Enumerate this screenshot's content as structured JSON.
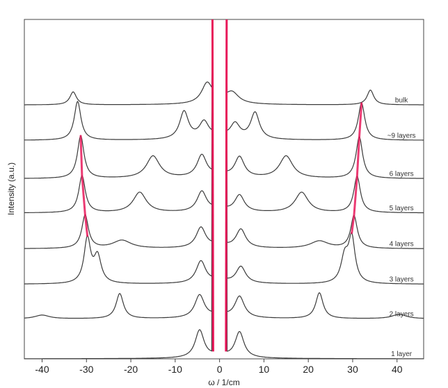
{
  "chart_data": {
    "type": "line",
    "title": "",
    "xlabel": "ω / 1/cm",
    "ylabel": "Intensity (a.u.)",
    "xlim": [
      -44,
      46
    ],
    "ylim": [
      0,
      9.2
    ],
    "xticks": [
      -40,
      -30,
      -20,
      -10,
      0,
      10,
      20,
      30,
      40
    ],
    "xtick_labels": [
      "-40",
      "-30",
      "-20",
      "-10",
      "0",
      "10",
      "20",
      "30",
      "40"
    ],
    "grid": false,
    "legend": "none",
    "colors": {
      "spectrum": "#3a3a3a",
      "highlight": "#e8195a",
      "fit": "#f29ab6"
    },
    "series": [
      {
        "label": "1 layer",
        "offset": 0.0,
        "peaks": [
          {
            "x": -4.5,
            "h": 0.75,
            "w": 1.2
          },
          {
            "x": 4.5,
            "h": 0.7,
            "w": 1.2
          }
        ]
      },
      {
        "label": "2 layers",
        "offset": 1.08,
        "peaks": [
          {
            "x": -4.5,
            "h": 0.62,
            "w": 1.3
          },
          {
            "x": 4.5,
            "h": 0.58,
            "w": 1.3
          },
          {
            "x": -22.5,
            "h": 0.68,
            "w": 1.0
          },
          {
            "x": 22.5,
            "h": 0.7,
            "w": 1.0
          },
          {
            "x": -40.0,
            "h": 0.1,
            "w": 2.0
          },
          {
            "x": 40.5,
            "h": 0.12,
            "w": 2.0
          }
        ]
      },
      {
        "label": "3 layers",
        "offset": 2.02,
        "peaks": [
          {
            "x": -4.2,
            "h": 0.6,
            "w": 1.3
          },
          {
            "x": 4.8,
            "h": 0.45,
            "w": 1.3
          },
          {
            "x": -27.5,
            "h": 0.72,
            "w": 1.0
          },
          {
            "x": 28.2,
            "h": 0.68,
            "w": 1.0
          },
          {
            "x": -29.8,
            "h": 1.2,
            "w": 0.9
          },
          {
            "x": 29.8,
            "h": 1.2,
            "w": 0.9
          }
        ]
      },
      {
        "label": "4 layers",
        "offset": 2.98,
        "peaks": [
          {
            "x": -4.2,
            "h": 0.55,
            "w": 1.3
          },
          {
            "x": 4.8,
            "h": 0.5,
            "w": 1.3
          },
          {
            "x": -22.0,
            "h": 0.22,
            "w": 2.5
          },
          {
            "x": 22.5,
            "h": 0.2,
            "w": 2.5
          },
          {
            "x": -30.3,
            "h": 0.9,
            "w": 0.9
          },
          {
            "x": 30.3,
            "h": 0.88,
            "w": 0.9
          }
        ]
      },
      {
        "label": "5 layers",
        "offset": 3.95,
        "peaks": [
          {
            "x": -4.0,
            "h": 0.55,
            "w": 1.3
          },
          {
            "x": 4.5,
            "h": 0.45,
            "w": 1.3
          },
          {
            "x": -18.0,
            "h": 0.55,
            "w": 1.8
          },
          {
            "x": 18.5,
            "h": 0.55,
            "w": 1.8
          },
          {
            "x": -31.0,
            "h": 1.0,
            "w": 0.9
          },
          {
            "x": 31.0,
            "h": 0.98,
            "w": 0.9
          }
        ]
      },
      {
        "label": "6 layers",
        "offset": 4.88,
        "peaks": [
          {
            "x": -4.0,
            "h": 0.6,
            "w": 1.3
          },
          {
            "x": 4.5,
            "h": 0.55,
            "w": 1.3
          },
          {
            "x": -15.0,
            "h": 0.6,
            "w": 1.8
          },
          {
            "x": 15.0,
            "h": 0.6,
            "w": 1.8
          },
          {
            "x": -31.3,
            "h": 1.15,
            "w": 0.9
          },
          {
            "x": 31.5,
            "h": 1.12,
            "w": 0.9
          }
        ]
      },
      {
        "label": "~9 layers",
        "offset": 5.92,
        "peaks": [
          {
            "x": -3.5,
            "h": 0.45,
            "w": 1.3
          },
          {
            "x": 3.5,
            "h": 0.4,
            "w": 1.3
          },
          {
            "x": -8.0,
            "h": 0.75,
            "w": 1.2
          },
          {
            "x": 8.0,
            "h": 0.72,
            "w": 1.2
          },
          {
            "x": -32.0,
            "h": 1.05,
            "w": 0.9
          },
          {
            "x": 32.0,
            "h": 1.0,
            "w": 0.9
          }
        ]
      },
      {
        "label": "bulk",
        "offset": 6.88,
        "peaks": [
          {
            "x": -2.8,
            "h": 0.55,
            "w": 1.5
          },
          {
            "x": 2.8,
            "h": 0.3,
            "w": 1.8
          },
          {
            "x": -33.0,
            "h": 0.35,
            "w": 0.9
          },
          {
            "x": 34.0,
            "h": 0.4,
            "w": 0.9
          }
        ]
      }
    ]
  }
}
